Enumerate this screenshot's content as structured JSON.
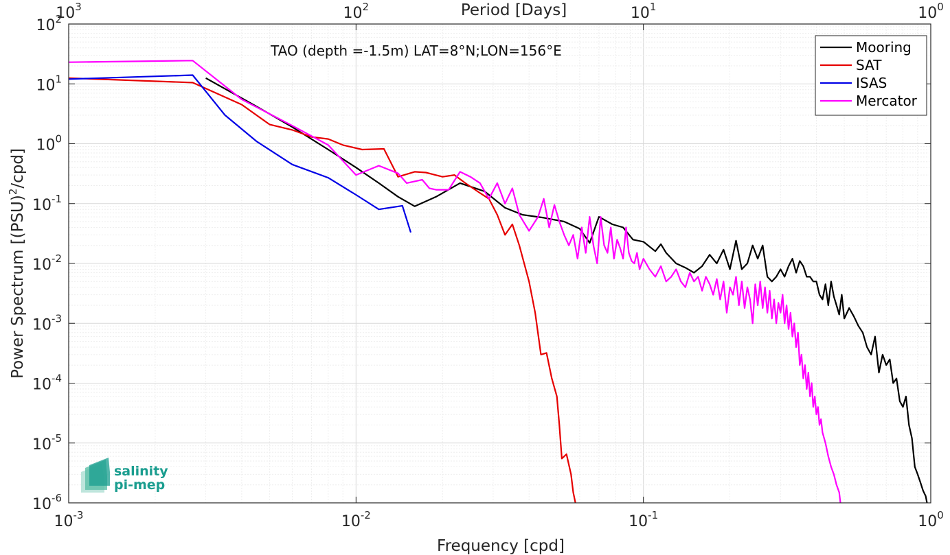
{
  "chart_data": {
    "type": "line",
    "annotation": "TAO (depth =-1.5m) LAT=8°N;LON=156°E",
    "xlabel": "Frequency [cpd]",
    "ylabel_main": "Power Spectrum [(PSU)",
    "ylabel_sup": "2",
    "ylabel_tail": "/cpd]",
    "x2label": "Period [Days]",
    "xscale": "log",
    "yscale": "log",
    "xlim": [
      0.001,
      1
    ],
    "ylim": [
      1e-06,
      100
    ],
    "grid": true,
    "legend_position": "top-right",
    "x_ticks": [
      {
        "base": "10",
        "exp": "-3",
        "value": 0.001
      },
      {
        "base": "10",
        "exp": "-2",
        "value": 0.01
      },
      {
        "base": "10",
        "exp": "-1",
        "value": 0.1
      },
      {
        "base": "10",
        "exp": "0",
        "value": 1
      }
    ],
    "x2_ticks": [
      {
        "base": "10",
        "exp": "3",
        "value": 0.001
      },
      {
        "base": "10",
        "exp": "2",
        "value": 0.01
      },
      {
        "base": "10",
        "exp": "1",
        "value": 0.1
      },
      {
        "base": "10",
        "exp": "0",
        "value": 1
      }
    ],
    "y_ticks": [
      {
        "base": "10",
        "exp": "2",
        "value": 100
      },
      {
        "base": "10",
        "exp": "1",
        "value": 10
      },
      {
        "base": "10",
        "exp": "0",
        "value": 1
      },
      {
        "base": "10",
        "exp": "-1",
        "value": 0.1
      },
      {
        "base": "10",
        "exp": "-2",
        "value": 0.01
      },
      {
        "base": "10",
        "exp": "-3",
        "value": 0.001
      },
      {
        "base": "10",
        "exp": "-4",
        "value": 0.0001
      },
      {
        "base": "10",
        "exp": "-5",
        "value": 1e-05
      },
      {
        "base": "10",
        "exp": "-6",
        "value": 1e-06
      }
    ],
    "series": [
      {
        "name": "Mooring",
        "color": "#000000",
        "points": [
          [
            0.003,
            12.5
          ],
          [
            0.0045,
            4.2
          ],
          [
            0.006,
            1.9
          ],
          [
            0.008,
            0.8
          ],
          [
            0.01,
            0.4
          ],
          [
            0.012,
            0.22
          ],
          [
            0.014,
            0.13
          ],
          [
            0.016,
            0.09
          ],
          [
            0.019,
            0.13
          ],
          [
            0.023,
            0.22
          ],
          [
            0.028,
            0.16
          ],
          [
            0.033,
            0.085
          ],
          [
            0.038,
            0.065
          ],
          [
            0.045,
            0.058
          ],
          [
            0.053,
            0.05
          ],
          [
            0.06,
            0.038
          ],
          [
            0.065,
            0.022
          ],
          [
            0.07,
            0.06
          ],
          [
            0.078,
            0.045
          ],
          [
            0.085,
            0.04
          ],
          [
            0.092,
            0.025
          ],
          [
            0.1,
            0.023
          ],
          [
            0.11,
            0.016
          ],
          [
            0.115,
            0.021
          ],
          [
            0.12,
            0.015
          ],
          [
            0.13,
            0.01
          ],
          [
            0.14,
            0.0085
          ],
          [
            0.15,
            0.007
          ],
          [
            0.16,
            0.009
          ],
          [
            0.17,
            0.014
          ],
          [
            0.18,
            0.01
          ],
          [
            0.19,
            0.017
          ],
          [
            0.2,
            0.008
          ],
          [
            0.21,
            0.024
          ],
          [
            0.22,
            0.008
          ],
          [
            0.23,
            0.01
          ],
          [
            0.24,
            0.02
          ],
          [
            0.25,
            0.012
          ],
          [
            0.26,
            0.02
          ],
          [
            0.27,
            0.006
          ],
          [
            0.28,
            0.005
          ],
          [
            0.29,
            0.006
          ],
          [
            0.3,
            0.008
          ],
          [
            0.31,
            0.006
          ],
          [
            0.32,
            0.009
          ],
          [
            0.33,
            0.012
          ],
          [
            0.34,
            0.007
          ],
          [
            0.35,
            0.011
          ],
          [
            0.36,
            0.009
          ],
          [
            0.37,
            0.006
          ],
          [
            0.38,
            0.006
          ],
          [
            0.39,
            0.005
          ],
          [
            0.4,
            0.005
          ],
          [
            0.41,
            0.003
          ],
          [
            0.42,
            0.0025
          ],
          [
            0.43,
            0.0045
          ],
          [
            0.44,
            0.002
          ],
          [
            0.45,
            0.005
          ],
          [
            0.46,
            0.0028
          ],
          [
            0.47,
            0.002
          ],
          [
            0.48,
            0.0014
          ],
          [
            0.49,
            0.003
          ],
          [
            0.5,
            0.0012
          ],
          [
            0.52,
            0.0018
          ],
          [
            0.54,
            0.0013
          ],
          [
            0.56,
            0.0009
          ],
          [
            0.58,
            0.0007
          ],
          [
            0.6,
            0.0004
          ],
          [
            0.62,
            0.0003
          ],
          [
            0.64,
            0.0006
          ],
          [
            0.66,
            0.00015
          ],
          [
            0.68,
            0.0003
          ],
          [
            0.7,
            0.0002
          ],
          [
            0.72,
            0.00025
          ],
          [
            0.74,
            0.0001
          ],
          [
            0.76,
            0.00012
          ],
          [
            0.78,
            5e-05
          ],
          [
            0.8,
            4e-05
          ],
          [
            0.82,
            6e-05
          ],
          [
            0.84,
            2e-05
          ],
          [
            0.86,
            1.2e-05
          ],
          [
            0.88,
            4e-06
          ],
          [
            0.9,
            3e-06
          ],
          [
            0.92,
            2.2e-06
          ],
          [
            0.94,
            1.6e-06
          ],
          [
            0.96,
            1.3e-06
          ],
          [
            0.97,
            1e-06
          ]
        ]
      },
      {
        "name": "SAT",
        "color": "#e60000",
        "points": [
          [
            0.001,
            12.5
          ],
          [
            0.0027,
            10.5
          ],
          [
            0.004,
            4.5
          ],
          [
            0.005,
            2.1
          ],
          [
            0.006,
            1.7
          ],
          [
            0.007,
            1.3
          ],
          [
            0.008,
            1.2
          ],
          [
            0.009,
            0.95
          ],
          [
            0.0105,
            0.8
          ],
          [
            0.0125,
            0.82
          ],
          [
            0.014,
            0.28
          ],
          [
            0.016,
            0.34
          ],
          [
            0.0175,
            0.33
          ],
          [
            0.02,
            0.28
          ],
          [
            0.022,
            0.3
          ],
          [
            0.024,
            0.22
          ],
          [
            0.027,
            0.15
          ],
          [
            0.029,
            0.12
          ],
          [
            0.031,
            0.065
          ],
          [
            0.033,
            0.03
          ],
          [
            0.035,
            0.045
          ],
          [
            0.037,
            0.02
          ],
          [
            0.04,
            0.005
          ],
          [
            0.042,
            0.0015
          ],
          [
            0.044,
            0.0003
          ],
          [
            0.046,
            0.00032
          ],
          [
            0.048,
            0.00012
          ],
          [
            0.05,
            6e-05
          ],
          [
            0.051,
            2e-05
          ],
          [
            0.052,
            5.5e-06
          ],
          [
            0.054,
            6.5e-06
          ],
          [
            0.056,
            3e-06
          ],
          [
            0.057,
            1.5e-06
          ],
          [
            0.058,
            1e-06
          ]
        ]
      },
      {
        "name": "ISAS",
        "color": "#0000e6",
        "points": [
          [
            0.001,
            12.0
          ],
          [
            0.0027,
            14.0
          ],
          [
            0.0035,
            3.0
          ],
          [
            0.0045,
            1.1
          ],
          [
            0.006,
            0.45
          ],
          [
            0.008,
            0.27
          ],
          [
            0.01,
            0.14
          ],
          [
            0.012,
            0.08
          ],
          [
            0.0145,
            0.092
          ],
          [
            0.0155,
            0.033
          ]
        ]
      },
      {
        "name": "Mercator",
        "color": "#ff00ff",
        "points": [
          [
            0.001,
            23.0
          ],
          [
            0.0027,
            24.5
          ],
          [
            0.004,
            5.5
          ],
          [
            0.006,
            2.0
          ],
          [
            0.008,
            0.95
          ],
          [
            0.01,
            0.3
          ],
          [
            0.012,
            0.43
          ],
          [
            0.014,
            0.32
          ],
          [
            0.015,
            0.22
          ],
          [
            0.017,
            0.25
          ],
          [
            0.018,
            0.18
          ],
          [
            0.019,
            0.17
          ],
          [
            0.021,
            0.17
          ],
          [
            0.023,
            0.34
          ],
          [
            0.025,
            0.28
          ],
          [
            0.027,
            0.22
          ],
          [
            0.029,
            0.12
          ],
          [
            0.031,
            0.22
          ],
          [
            0.033,
            0.1
          ],
          [
            0.035,
            0.18
          ],
          [
            0.037,
            0.065
          ],
          [
            0.04,
            0.035
          ],
          [
            0.043,
            0.06
          ],
          [
            0.045,
            0.12
          ],
          [
            0.047,
            0.04
          ],
          [
            0.049,
            0.095
          ],
          [
            0.051,
            0.05
          ],
          [
            0.053,
            0.03
          ],
          [
            0.055,
            0.02
          ],
          [
            0.057,
            0.03
          ],
          [
            0.059,
            0.012
          ],
          [
            0.061,
            0.04
          ],
          [
            0.063,
            0.015
          ],
          [
            0.065,
            0.06
          ],
          [
            0.067,
            0.02
          ],
          [
            0.069,
            0.01
          ],
          [
            0.071,
            0.06
          ],
          [
            0.073,
            0.02
          ],
          [
            0.075,
            0.015
          ],
          [
            0.077,
            0.04
          ],
          [
            0.079,
            0.012
          ],
          [
            0.081,
            0.025
          ],
          [
            0.083,
            0.018
          ],
          [
            0.085,
            0.012
          ],
          [
            0.087,
            0.04
          ],
          [
            0.089,
            0.015
          ],
          [
            0.091,
            0.011
          ],
          [
            0.093,
            0.01
          ],
          [
            0.095,
            0.015
          ],
          [
            0.097,
            0.008
          ],
          [
            0.1,
            0.012
          ],
          [
            0.105,
            0.008
          ],
          [
            0.11,
            0.006
          ],
          [
            0.115,
            0.009
          ],
          [
            0.12,
            0.005
          ],
          [
            0.125,
            0.006
          ],
          [
            0.13,
            0.008
          ],
          [
            0.135,
            0.005
          ],
          [
            0.14,
            0.004
          ],
          [
            0.145,
            0.007
          ],
          [
            0.15,
            0.005
          ],
          [
            0.155,
            0.006
          ],
          [
            0.16,
            0.0035
          ],
          [
            0.165,
            0.006
          ],
          [
            0.17,
            0.0045
          ],
          [
            0.175,
            0.003
          ],
          [
            0.18,
            0.0055
          ],
          [
            0.185,
            0.0025
          ],
          [
            0.19,
            0.005
          ],
          [
            0.195,
            0.0015
          ],
          [
            0.2,
            0.004
          ],
          [
            0.205,
            0.003
          ],
          [
            0.21,
            0.006
          ],
          [
            0.215,
            0.002
          ],
          [
            0.22,
            0.005
          ],
          [
            0.225,
            0.0018
          ],
          [
            0.23,
            0.004
          ],
          [
            0.235,
            0.0025
          ],
          [
            0.24,
            0.001
          ],
          [
            0.245,
            0.0045
          ],
          [
            0.25,
            0.002
          ],
          [
            0.255,
            0.005
          ],
          [
            0.26,
            0.0018
          ],
          [
            0.265,
            0.004
          ],
          [
            0.27,
            0.0015
          ],
          [
            0.275,
            0.0035
          ],
          [
            0.28,
            0.0012
          ],
          [
            0.285,
            0.0025
          ],
          [
            0.29,
            0.001
          ],
          [
            0.295,
            0.0022
          ],
          [
            0.3,
            0.0015
          ],
          [
            0.305,
            0.003
          ],
          [
            0.31,
            0.001
          ],
          [
            0.315,
            0.002
          ],
          [
            0.32,
            0.0008
          ],
          [
            0.325,
            0.0015
          ],
          [
            0.33,
            0.0006
          ],
          [
            0.335,
            0.001
          ],
          [
            0.34,
            0.0004
          ],
          [
            0.345,
            0.0007
          ],
          [
            0.35,
            0.0002
          ],
          [
            0.355,
            0.0003
          ],
          [
            0.36,
            0.00012
          ],
          [
            0.365,
            0.0002
          ],
          [
            0.37,
            8e-05
          ],
          [
            0.375,
            0.00015
          ],
          [
            0.38,
            6e-05
          ],
          [
            0.385,
            0.0001
          ],
          [
            0.39,
            4e-05
          ],
          [
            0.395,
            6e-05
          ],
          [
            0.4,
            3e-05
          ],
          [
            0.405,
            4e-05
          ],
          [
            0.41,
            2e-05
          ],
          [
            0.415,
            2.5e-05
          ],
          [
            0.42,
            1.5e-05
          ],
          [
            0.43,
            1e-05
          ],
          [
            0.44,
            6e-06
          ],
          [
            0.45,
            4e-06
          ],
          [
            0.46,
            3e-06
          ],
          [
            0.47,
            2e-06
          ],
          [
            0.48,
            1.5e-06
          ],
          [
            0.485,
            1e-06
          ]
        ]
      }
    ]
  },
  "logo": {
    "line1": "salinity",
    "line2": "pi-mep",
    "color": "#1a9d8f"
  }
}
